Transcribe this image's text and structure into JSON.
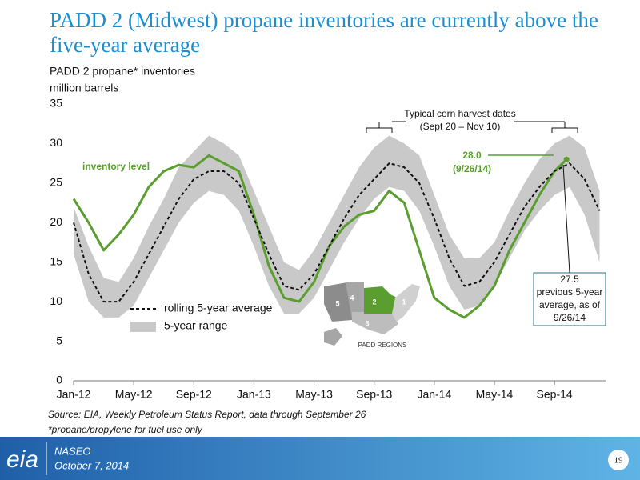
{
  "slide": {
    "title": "PADD 2 (Midwest) propane inventories are currently above the five-year average",
    "source": "Source: EIA, Weekly Petroleum Status Report, data through September 26",
    "note": "*propane/propylene for fuel use only"
  },
  "footer": {
    "logo": "eia",
    "event": "NASEO",
    "date": "October 7, 2014",
    "page": "19"
  },
  "inset_map": {
    "title": "PADD REGIONS",
    "regions": [
      "1",
      "2",
      "3",
      "4",
      "5"
    ]
  },
  "chart_data": {
    "type": "line",
    "title": "PADD 2 propane* inventories",
    "y_label": "million barrels",
    "xlim": [
      0,
      35.4
    ],
    "xticks": [
      {
        "value": 0,
        "label": "Jan-12"
      },
      {
        "value": 4,
        "label": "May-12"
      },
      {
        "value": 8,
        "label": "Sep-12"
      },
      {
        "value": 12,
        "label": "Jan-13"
      },
      {
        "value": 16,
        "label": "May-13"
      },
      {
        "value": 20,
        "label": "Sep-13"
      },
      {
        "value": 24,
        "label": "Jan-14"
      },
      {
        "value": 28,
        "label": "May-14"
      },
      {
        "value": 32,
        "label": "Sep-14"
      }
    ],
    "ylim": [
      0,
      35
    ],
    "yticks": [
      0,
      5,
      10,
      15,
      20,
      25,
      30,
      35
    ],
    "legend": "lower left",
    "series": [
      {
        "name": "inventory level",
        "color": "#5a9e2f",
        "in_legend": false,
        "style": "solid",
        "x": [
          0,
          1,
          2,
          3,
          4,
          5,
          6,
          7,
          8,
          9,
          10,
          11,
          12,
          13,
          14,
          15,
          16,
          17,
          18,
          19,
          20,
          21,
          22,
          23,
          24,
          25,
          26,
          27,
          28,
          29,
          30,
          31,
          32,
          32.8
        ],
        "values": [
          23.0,
          20.0,
          16.5,
          18.5,
          21.0,
          24.5,
          26.5,
          27.3,
          27.0,
          28.5,
          27.5,
          26.5,
          21.0,
          14.5,
          10.5,
          10.0,
          12.5,
          17.0,
          19.5,
          21.0,
          21.5,
          24.0,
          22.5,
          16.5,
          10.5,
          9.0,
          8.0,
          9.5,
          12.0,
          16.5,
          20.0,
          23.5,
          26.5,
          28.0
        ]
      },
      {
        "name": "rolling 5-year average",
        "color": "#111111",
        "style": "dashed",
        "x": [
          0,
          1,
          2,
          3,
          4,
          5,
          6,
          7,
          8,
          9,
          10,
          11,
          12,
          13,
          14,
          15,
          16,
          17,
          18,
          19,
          20,
          21,
          22,
          23,
          24,
          25,
          26,
          27,
          28,
          29,
          30,
          31,
          32,
          33,
          34,
          35
        ],
        "values": [
          20.0,
          13.5,
          10.0,
          10.0,
          12.5,
          16.0,
          19.5,
          23.0,
          25.5,
          26.5,
          26.5,
          25.0,
          20.5,
          16.0,
          12.0,
          11.5,
          13.5,
          17.0,
          20.5,
          23.5,
          25.5,
          27.5,
          27.0,
          25.0,
          20.5,
          15.5,
          12.0,
          12.5,
          15.0,
          18.5,
          22.0,
          24.5,
          26.5,
          27.5,
          25.5,
          21.5
        ]
      },
      {
        "name": "5-year range",
        "color": "#c9c9c9",
        "style": "band",
        "x": [
          0,
          1,
          2,
          3,
          4,
          5,
          6,
          7,
          8,
          9,
          10,
          11,
          12,
          13,
          14,
          15,
          16,
          17,
          18,
          19,
          20,
          21,
          22,
          23,
          24,
          25,
          26,
          27,
          28,
          29,
          30,
          31,
          32,
          33,
          34,
          35
        ],
        "low": [
          16,
          10,
          8,
          8,
          9.5,
          13,
          16.5,
          20,
          22.5,
          24,
          23.5,
          21.5,
          17,
          12,
          8.5,
          8.5,
          10.5,
          14,
          17.5,
          20.5,
          23,
          24.5,
          24,
          21.5,
          17,
          12,
          9,
          9.5,
          12,
          15.5,
          19,
          21.5,
          23.5,
          24.5,
          21,
          15
        ],
        "high": [
          22,
          17,
          13,
          12.5,
          15.5,
          19.5,
          23,
          27,
          29,
          31,
          30,
          28.5,
          24,
          19.5,
          15,
          14,
          16.5,
          20,
          23.5,
          27,
          29.5,
          31,
          30,
          28.5,
          23.5,
          18.5,
          15.5,
          15.5,
          17.5,
          21.5,
          25,
          28,
          30,
          31,
          29.5,
          24
        ]
      }
    ],
    "annotations": [
      {
        "text": [
          "Typical corn harvest dates",
          "(Sept 20 – Nov 10)"
        ]
      },
      {
        "text": [
          "28.0",
          "(9/26/14)"
        ]
      },
      {
        "text": [
          "27.5",
          "previous 5-year",
          "average, as of",
          "9/26/14"
        ]
      }
    ]
  }
}
